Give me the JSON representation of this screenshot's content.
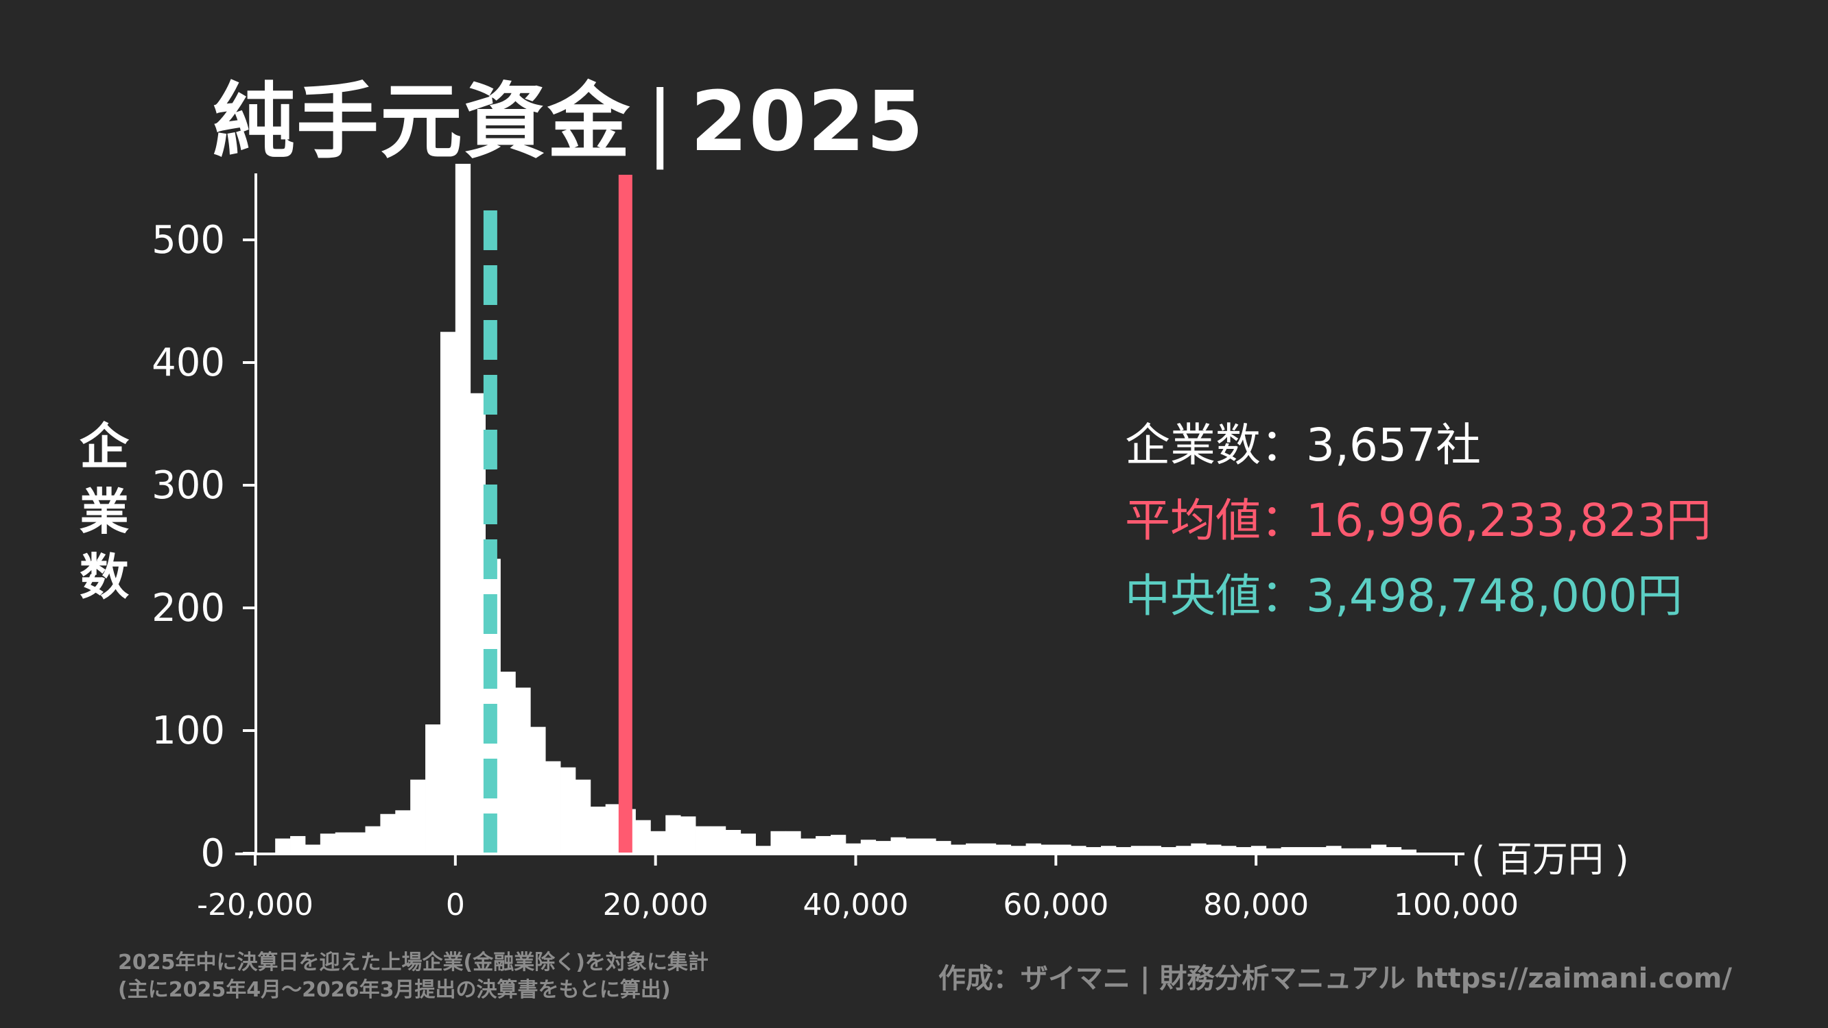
{
  "title": {
    "main": "純手元資金",
    "separator": "|",
    "year": "2025"
  },
  "stats": {
    "count_label": "企業数",
    "count_value": "3,657社",
    "mean_label": "平均値",
    "mean_value": "16,996,233,823円",
    "median_label": "中央値",
    "median_value": "3,498,748,000円",
    "colon": "："
  },
  "colors": {
    "background": "#282828",
    "bars": "#ffffff",
    "mean": "#ff5a70",
    "median": "#5ccfc4",
    "footer_text": "#8c8c8c"
  },
  "footer": {
    "note_line1": "2025年中に決算日を迎えた上場企業(金融業除く)を対象に集計",
    "note_line2": "(主に2025年4月〜2026年3月提出の決算書をもとに算出)",
    "credit": "作成：ザイマニ | 財務分析マニュアル https://zaimani.com/"
  },
  "chart_data": {
    "type": "bar",
    "title": "純手元資金｜2025",
    "xlabel": "( 百万円 )",
    "ylabel": "企業数",
    "xlim": [
      -22000,
      100000
    ],
    "ylim": [
      0,
      590
    ],
    "bin_width": 1500,
    "bin_start": -18000,
    "xticks": [
      -20000,
      0,
      20000,
      40000,
      60000,
      80000,
      100000
    ],
    "xtick_labels": [
      "-20,000",
      "0",
      "20,000",
      "40,000",
      "60,000",
      "80,000",
      "100,000"
    ],
    "yticks": [
      0,
      100,
      200,
      300,
      400,
      500
    ],
    "ytick_labels": [
      "0",
      "100",
      "200",
      "300",
      "400",
      "500"
    ],
    "mean": 16996.233823,
    "median": 3498.748,
    "counts": [
      12,
      14,
      7,
      16,
      17,
      17,
      22,
      32,
      35,
      60,
      105,
      425,
      562,
      375,
      240,
      148,
      135,
      103,
      75,
      70,
      60,
      38,
      40,
      36,
      27,
      18,
      31,
      30,
      22,
      22,
      19,
      16,
      6,
      18,
      18,
      12,
      14,
      15,
      8,
      11,
      10,
      13,
      12,
      12,
      10,
      7,
      8,
      8,
      7,
      6,
      8,
      7,
      7,
      6,
      5,
      6,
      5,
      6,
      6,
      5,
      6,
      8,
      7,
      6,
      5,
      6,
      4,
      5,
      5,
      5,
      6,
      4,
      4,
      7,
      5,
      3
    ]
  }
}
